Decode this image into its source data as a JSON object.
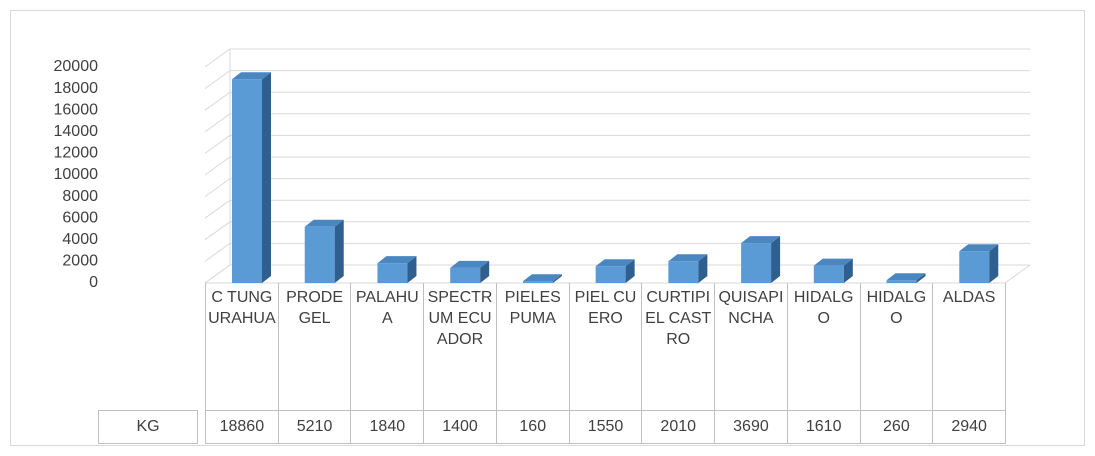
{
  "chart_data": {
    "type": "bar3d",
    "categories": [
      "C TUNGURAHUA",
      "PRODEGEL",
      "PALAHUA",
      "SPECTRUM ECUADOR",
      "PIELES PUMA",
      "PIEL CUERO",
      "CURTIPIEL CASTRO",
      "QUISAPINCHA",
      "HIDALGO",
      "HIDALGO",
      "ALDAS"
    ],
    "series": [
      {
        "name": "KG",
        "color": "#5b9bd5",
        "values": [
          18860,
          5210,
          1840,
          1400,
          160,
          1550,
          2010,
          3690,
          1610,
          260,
          2940
        ]
      }
    ],
    "ylim": [
      0,
      20000
    ],
    "yticks": [
      0,
      2000,
      4000,
      6000,
      8000,
      10000,
      12000,
      14000,
      16000,
      18000,
      20000
    ],
    "grid": true,
    "data_table": true
  }
}
